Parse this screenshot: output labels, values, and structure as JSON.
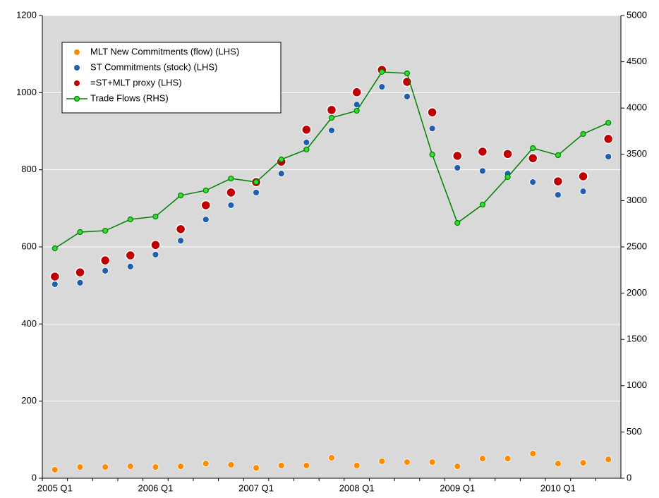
{
  "chart_data": {
    "type": "combo",
    "categories": [
      "2005 Q1",
      null,
      null,
      null,
      "2006 Q1",
      null,
      null,
      null,
      "2007 Q1",
      null,
      null,
      null,
      "2008 Q1",
      null,
      null,
      null,
      "2009 Q1",
      null,
      null,
      null,
      "2010 Q1",
      null,
      null
    ],
    "ylim": [
      0,
      1200
    ],
    "yticks": [
      0,
      200,
      400,
      600,
      800,
      1000,
      1200
    ],
    "y2lim": [
      0,
      5000
    ],
    "y2ticks": [
      0,
      500,
      1000,
      1500,
      2000,
      2500,
      3000,
      3500,
      4000,
      4500,
      5000
    ],
    "grid": true,
    "legend": "upper-left",
    "background": "#d9d9d9",
    "series": [
      {
        "name": "MLT New Commitments (flow) (LHS)",
        "type": "scatter",
        "color": "#ff8c00",
        "values": [
          22,
          29,
          29,
          31,
          29,
          31,
          38,
          35,
          27,
          33,
          33,
          53,
          33,
          44,
          42,
          42,
          31,
          51,
          51,
          64,
          38,
          40,
          49
        ]
      },
      {
        "name": "ST Commitments (stock) (LHS)",
        "type": "scatter",
        "color": "#1f5fae",
        "values": [
          503,
          507,
          538,
          549,
          580,
          616,
          671,
          708,
          741,
          790,
          871,
          902,
          969,
          1015,
          990,
          907,
          805,
          797,
          790,
          768,
          735,
          744,
          834
        ]
      },
      {
        "name": "=ST+MLT proxy  (LHS)",
        "type": "scatter",
        "color": "#c00000",
        "values": [
          523,
          534,
          565,
          578,
          605,
          646,
          708,
          741,
          768,
          821,
          904,
          955,
          1001,
          1059,
          1028,
          949,
          836,
          847,
          841,
          830,
          770,
          783,
          880
        ]
      },
      {
        "name": "Trade Flows (RHS)",
        "type": "line",
        "axis": "y2",
        "color": "#008000",
        "values": [
          2485,
          2660,
          2675,
          2797,
          2828,
          3056,
          3110,
          3239,
          3201,
          3445,
          3552,
          3895,
          3971,
          4390,
          4375,
          3498,
          2759,
          2957,
          3255,
          3567,
          3491,
          3720,
          3841
        ]
      }
    ]
  }
}
